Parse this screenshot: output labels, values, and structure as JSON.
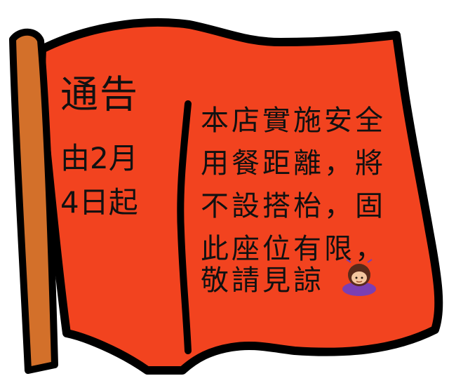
{
  "notice": {
    "title": "通告",
    "date_line1": "由2月",
    "date_line2": "4日起",
    "body_lines": [
      "本店實施安全",
      "用餐距離，將",
      "不設搭枱，固",
      "此座位有限，",
      "敬請見諒"
    ]
  },
  "colors": {
    "flag": "#f2431f",
    "pole": "#d3702a",
    "outline": "#000000"
  },
  "icons": {
    "emoji": "person-bowing-icon"
  }
}
